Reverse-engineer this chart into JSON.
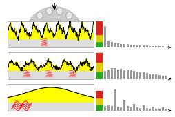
{
  "bg_color": "#ffffff",
  "row1_bars": [
    0.85,
    0.28,
    0.22,
    0.18,
    0.16,
    0.14,
    0.13,
    0.12,
    0.11,
    0.1,
    0.09,
    0.08,
    0.07,
    0.07,
    0.06,
    0.05,
    0.05,
    0.04,
    0.04,
    0.03
  ],
  "row2_bars": [
    0.32,
    0.38,
    0.42,
    0.44,
    0.38,
    0.4,
    0.36,
    0.38,
    0.34,
    0.32,
    0.3,
    0.28,
    0.26,
    0.24,
    0.22,
    0.2,
    0.18,
    0.16,
    0.14,
    0.12
  ],
  "row3_bars": [
    0.18,
    0.22,
    0.18,
    0.85,
    0.16,
    0.14,
    0.42,
    0.18,
    0.14,
    0.26,
    0.12,
    0.1,
    0.2,
    0.1,
    0.08,
    0.16,
    0.07,
    0.06,
    0.12,
    0.05
  ],
  "red_color": "#dd2222",
  "yellow_color": "#ddcc00",
  "green_color": "#22aa22",
  "bar_color": "#999999",
  "wave_yellow": "#ffff00",
  "wave_bg_top": "#ffffff",
  "wave_bg_bot": "#dddddd",
  "bearing_color": "#cccccc",
  "bearing_inner": "#e8e8e8"
}
